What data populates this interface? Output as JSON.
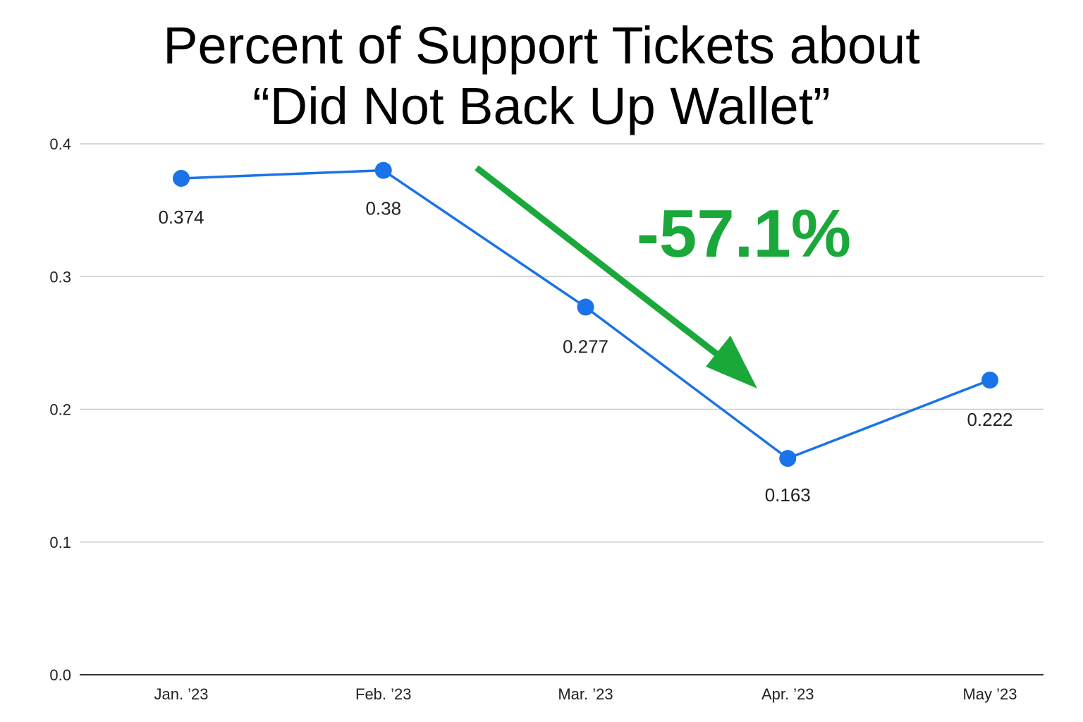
{
  "chart_data": {
    "type": "line",
    "title_line1": "Percent of Support Tickets about",
    "title_line2": "“Did Not Back Up Wallet”",
    "categories": [
      "Jan. ’23",
      "Feb. ’23",
      "Mar. ’23",
      "Apr. ’23",
      "May ’23"
    ],
    "series": [
      {
        "values": [
          0.374,
          0.38,
          0.277,
          0.163,
          0.222
        ],
        "labels": [
          "0.374",
          "0.38",
          "0.277",
          "0.163",
          "0.222"
        ]
      }
    ],
    "ylim": [
      0,
      0.4
    ],
    "yticks": [
      "0.0",
      "0.1",
      "0.2",
      "0.3",
      "0.4"
    ],
    "ytick_values": [
      0,
      0.1,
      0.2,
      0.3,
      0.4
    ],
    "grid": true,
    "annotation": {
      "text": "-57.1%",
      "color": "#1aa83a"
    },
    "line_color": "#1a73e8",
    "grid_color": "#cccccc",
    "axis_color": "#333333"
  }
}
